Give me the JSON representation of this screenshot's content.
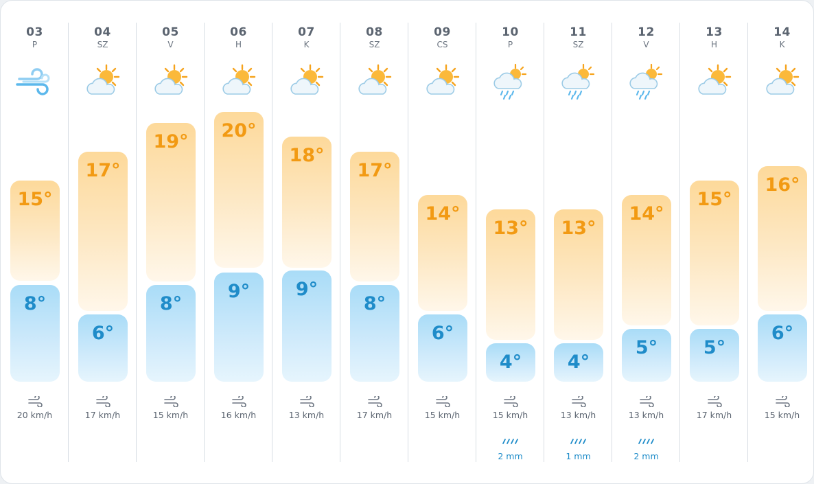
{
  "forecast": {
    "days": [
      {
        "date": "03",
        "dow": "P",
        "icon": "wind-icon",
        "high": "15°",
        "low": "8°",
        "wind": "20 km/h",
        "rain": ""
      },
      {
        "date": "04",
        "dow": "SZ",
        "icon": "sun-cloud-icon",
        "high": "17°",
        "low": "6°",
        "wind": "17 km/h",
        "rain": ""
      },
      {
        "date": "05",
        "dow": "V",
        "icon": "sun-cloud-icon",
        "high": "19°",
        "low": "8°",
        "wind": "15 km/h",
        "rain": ""
      },
      {
        "date": "06",
        "dow": "H",
        "icon": "sun-cloud-icon",
        "high": "20°",
        "low": "9°",
        "wind": "16 km/h",
        "rain": ""
      },
      {
        "date": "07",
        "dow": "K",
        "icon": "sun-cloud-icon",
        "high": "18°",
        "low": "9°",
        "wind": "13 km/h",
        "rain": ""
      },
      {
        "date": "08",
        "dow": "SZ",
        "icon": "sun-cloud-icon",
        "high": "17°",
        "low": "8°",
        "wind": "17 km/h",
        "rain": ""
      },
      {
        "date": "09",
        "dow": "CS",
        "icon": "sun-cloud-icon",
        "high": "14°",
        "low": "6°",
        "wind": "15 km/h",
        "rain": ""
      },
      {
        "date": "10",
        "dow": "P",
        "icon": "sun-rain-cloud-icon",
        "high": "13°",
        "low": "4°",
        "wind": "15 km/h",
        "rain": "2 mm"
      },
      {
        "date": "11",
        "dow": "SZ",
        "icon": "sun-rain-cloud-icon",
        "high": "13°",
        "low": "4°",
        "wind": "13 km/h",
        "rain": "1 mm"
      },
      {
        "date": "12",
        "dow": "V",
        "icon": "sun-rain-cloud-icon",
        "high": "14°",
        "low": "5°",
        "wind": "13 km/h",
        "rain": "2 mm"
      },
      {
        "date": "13",
        "dow": "H",
        "icon": "sun-cloud-icon",
        "high": "15°",
        "low": "5°",
        "wind": "17 km/h",
        "rain": ""
      },
      {
        "date": "14",
        "dow": "K",
        "icon": "sun-cloud-icon",
        "high": "16°",
        "low": "6°",
        "wind": "15 km/h",
        "rain": ""
      }
    ]
  },
  "colors": {
    "high_text": "#f29a13",
    "low_text": "#1f8cc9",
    "high_bar": "#fdd99a",
    "low_bar": "#a9dcf7",
    "rain_text": "#1f8cc9"
  }
}
